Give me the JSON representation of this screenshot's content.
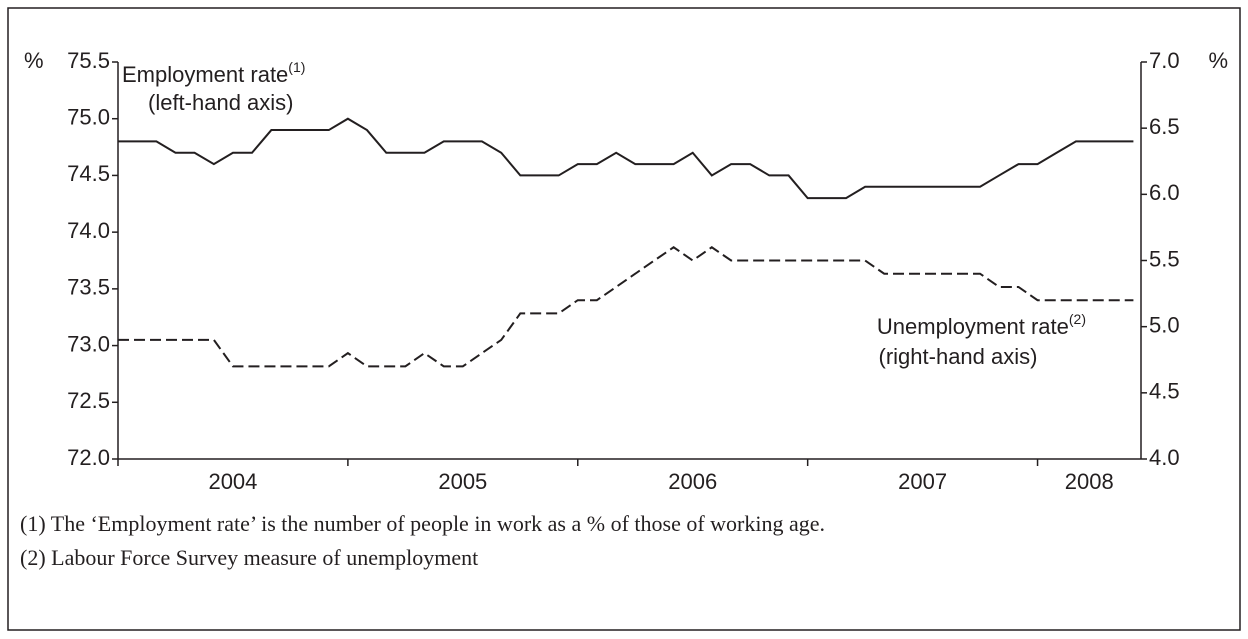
{
  "chart_data": {
    "type": "line",
    "y_unit": "%",
    "y2_unit": "%",
    "x": [
      2004.0,
      2004.083,
      2004.167,
      2004.25,
      2004.333,
      2004.417,
      2004.5,
      2004.583,
      2004.667,
      2004.75,
      2004.833,
      2004.917,
      2005.0,
      2005.083,
      2005.167,
      2005.25,
      2005.333,
      2005.417,
      2005.5,
      2005.583,
      2005.667,
      2005.75,
      2005.833,
      2005.917,
      2006.0,
      2006.083,
      2006.167,
      2006.25,
      2006.333,
      2006.417,
      2006.5,
      2006.583,
      2006.667,
      2006.75,
      2006.833,
      2006.917,
      2007.0,
      2007.083,
      2007.167,
      2007.25,
      2007.333,
      2007.417,
      2007.5,
      2007.583,
      2007.667,
      2007.75,
      2007.833,
      2007.917,
      2008.0,
      2008.083,
      2008.167,
      2008.25,
      2008.333,
      2008.417
    ],
    "series": [
      {
        "name": "Employment rate",
        "footnote_ref": "(1)",
        "caption": "(left-hand axis)",
        "axis": "y",
        "color": "#231f20",
        "line_style": "solid",
        "values": [
          74.8,
          74.8,
          74.8,
          74.7,
          74.7,
          74.6,
          74.7,
          74.7,
          74.9,
          74.9,
          74.9,
          74.9,
          75.0,
          74.9,
          74.7,
          74.7,
          74.7,
          74.8,
          74.8,
          74.8,
          74.7,
          74.5,
          74.5,
          74.5,
          74.6,
          74.6,
          74.7,
          74.6,
          74.6,
          74.6,
          74.7,
          74.5,
          74.6,
          74.6,
          74.5,
          74.5,
          74.3,
          74.3,
          74.3,
          74.4,
          74.4,
          74.4,
          74.4,
          74.4,
          74.4,
          74.4,
          74.5,
          74.6,
          74.6,
          74.7,
          74.8,
          74.8,
          74.8,
          74.8
        ]
      },
      {
        "name": "Unemployment rate",
        "footnote_ref": "(2)",
        "caption": "(right-hand axis)",
        "axis": "y2",
        "color": "#231f20",
        "line_style": "dashed",
        "values": [
          4.9,
          4.9,
          4.9,
          4.9,
          4.9,
          4.9,
          4.7,
          4.7,
          4.7,
          4.7,
          4.7,
          4.7,
          4.8,
          4.7,
          4.7,
          4.7,
          4.8,
          4.7,
          4.7,
          4.8,
          4.9,
          5.1,
          5.1,
          5.1,
          5.2,
          5.2,
          5.3,
          5.4,
          5.5,
          5.6,
          5.5,
          5.6,
          5.5,
          5.5,
          5.5,
          5.5,
          5.5,
          5.5,
          5.5,
          5.5,
          5.4,
          5.4,
          5.4,
          5.4,
          5.4,
          5.4,
          5.3,
          5.3,
          5.2,
          5.2,
          5.2,
          5.2,
          5.2,
          5.2
        ]
      }
    ],
    "xlim": [
      2004,
      2008.45
    ],
    "xticks": [
      2004,
      2005,
      2006,
      2007,
      2008
    ],
    "ylim": [
      72.0,
      75.5
    ],
    "yticks": [
      {
        "value": 72.0,
        "label": "72.0"
      },
      {
        "value": 72.5,
        "label": "72.5"
      },
      {
        "value": 73.0,
        "label": "73.0"
      },
      {
        "value": 73.5,
        "label": "73.5"
      },
      {
        "value": 74.0,
        "label": "74.0"
      },
      {
        "value": 74.5,
        "label": "74.5"
      },
      {
        "value": 75.0,
        "label": "75.0"
      },
      {
        "value": 75.5,
        "label": "75.5"
      }
    ],
    "y2lim": [
      4.0,
      7.0
    ],
    "y2ticks": [
      {
        "value": 4.0,
        "label": "4.0"
      },
      4.5,
      {
        "value": 5.0,
        "label": "5.0"
      },
      5.5,
      {
        "value": 6.0,
        "label": "6.0"
      },
      6.5,
      {
        "value": 7.0,
        "label": "7.0"
      }
    ],
    "grid": false,
    "footnotes": [
      "(1)  The ‘Employment rate’ is the number of people in work as a % of those of working age.",
      "(2)  Labour Force Survey measure of unemployment"
    ]
  }
}
